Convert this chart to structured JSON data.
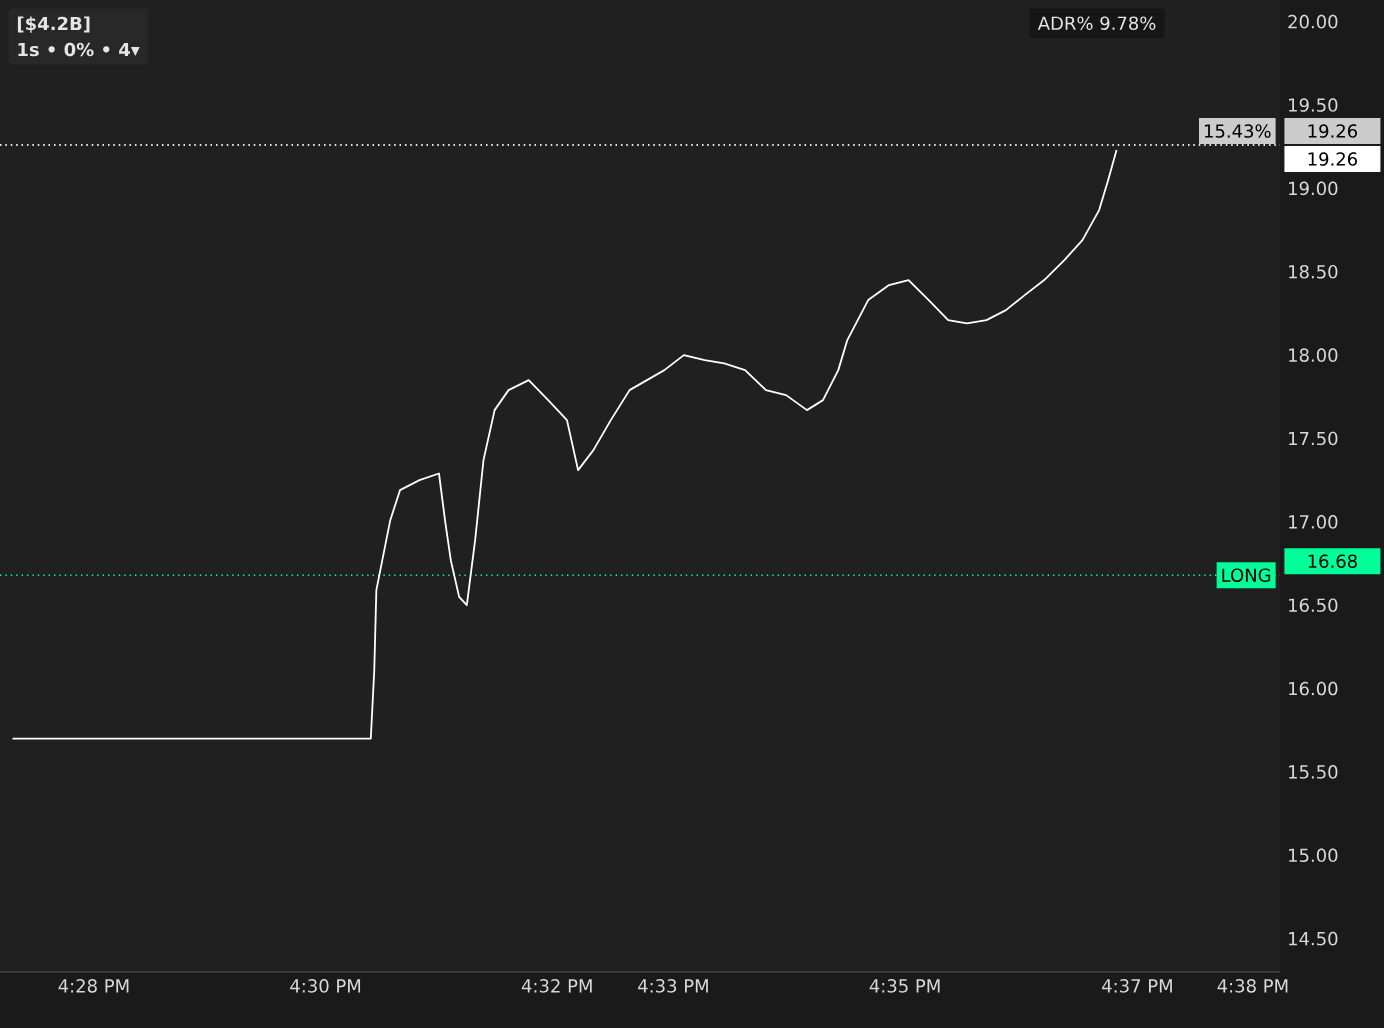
{
  "chart_data": {
    "type": "line",
    "title": "[$4.2B]",
    "subtitle": "1s • 0% • 4▾",
    "x": [
      16.455,
      16.5065,
      16.507,
      16.5073,
      16.5093,
      16.5107,
      16.5135,
      16.5163,
      16.5172,
      16.518,
      16.5192,
      16.5203,
      16.5215,
      16.5227,
      16.5243,
      16.5263,
      16.5292,
      16.532,
      16.5347,
      16.5363,
      16.5385,
      16.541,
      16.5437,
      16.5462,
      16.5487,
      16.5515,
      16.5545,
      16.5573,
      16.5603,
      16.5633,
      16.5662,
      16.5692,
      16.5715,
      16.5737,
      16.575,
      16.578,
      16.581,
      16.5838,
      16.5867,
      16.5895,
      16.5922,
      16.595,
      16.5978,
      16.6005,
      16.6033,
      16.6062,
      16.6088,
      16.6112,
      16.6125,
      16.6137
    ],
    "series": [
      {
        "color": "#ffffff",
        "values": [
          15.7,
          15.7,
          16.11,
          16.59,
          17.01,
          17.19,
          17.25,
          17.29,
          17.0,
          16.77,
          16.55,
          16.5,
          16.89,
          17.37,
          17.67,
          17.79,
          17.85,
          17.73,
          17.61,
          17.31,
          17.43,
          17.61,
          17.79,
          17.85,
          17.91,
          18.0,
          17.97,
          17.95,
          17.91,
          17.79,
          17.76,
          17.67,
          17.73,
          17.91,
          18.09,
          18.33,
          18.42,
          18.45,
          18.33,
          18.21,
          18.19,
          18.21,
          18.27,
          18.36,
          18.45,
          18.57,
          18.69,
          18.87,
          19.05,
          19.23
        ]
      }
    ],
    "xlim": [
      16.4532,
      16.6372
    ],
    "ylim": [
      14.3,
      20.13
    ],
    "xticks": [
      {
        "value": 16.4667,
        "label": "4:28 PM"
      },
      {
        "value": 16.5,
        "label": "4:30 PM"
      },
      {
        "value": 16.5333,
        "label": "4:32 PM"
      },
      {
        "value": 16.55,
        "label": "4:33 PM"
      },
      {
        "value": 16.5833,
        "label": "4:35 PM"
      },
      {
        "value": 16.6167,
        "label": "4:37 PM"
      },
      {
        "value": 16.6333,
        "label": "4:38 PM"
      }
    ],
    "yticks": [
      {
        "value": 14.5,
        "label": "14.50"
      },
      {
        "value": 15,
        "label": "15.00"
      },
      {
        "value": 15.5,
        "label": "15.50"
      },
      {
        "value": 16,
        "label": "16.00"
      },
      {
        "value": 16.5,
        "label": "16.50"
      },
      {
        "value": 17,
        "label": "17.00"
      },
      {
        "value": 17.5,
        "label": "17.50"
      },
      {
        "value": 18,
        "label": "18.00"
      },
      {
        "value": 18.5,
        "label": "18.50"
      },
      {
        "value": 19,
        "label": "19.00"
      },
      {
        "value": 19.5,
        "label": "19.50"
      },
      {
        "value": 20,
        "label": "20.00"
      }
    ],
    "ref_lines": [
      {
        "axis": "y",
        "value": 19.26,
        "label": "19.26",
        "color": "#cccccc",
        "line_style": "dotted"
      },
      {
        "axis": "y",
        "value": 19.26,
        "label": "19.26",
        "color": "#ffffff",
        "line_style": "dotted"
      },
      {
        "axis": "y",
        "value": 16.68,
        "label": "16.68",
        "color": "#00ff99",
        "line_style": "dotted"
      }
    ],
    "annotations": [
      "ADR% 9.78%",
      "15.43%",
      "LONG"
    ]
  }
}
